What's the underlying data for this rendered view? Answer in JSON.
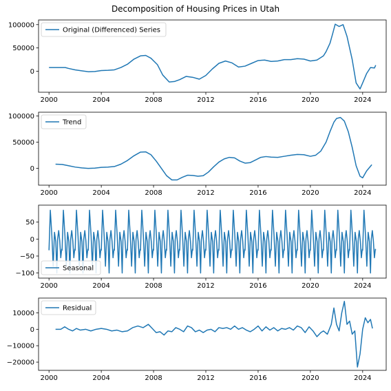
{
  "chart_data": {
    "type": "line",
    "title": "Decomposition of Housing Prices in Utah",
    "line_color": "#1f77b4",
    "grid": false,
    "legend_position": "upper left",
    "panels": [
      {
        "key": "original",
        "legend": "Original (Differenced) Series",
        "xlim": [
          1999.2,
          2025.8
        ],
        "ylim": [
          -45000,
          110000
        ],
        "xticks": [
          2000,
          2004,
          2008,
          2012,
          2016,
          2020,
          2024
        ],
        "yticks": [
          0,
          50000,
          100000
        ],
        "ytick_labels": [
          "0",
          "50000",
          "100000"
        ],
        "x": [
          2000.0,
          2001.25,
          2001.5,
          2002.0,
          2002.5,
          2003.0,
          2003.5,
          2004.0,
          2004.5,
          2005.0,
          2005.5,
          2006.0,
          2006.5,
          2007.0,
          2007.4,
          2007.8,
          2008.3,
          2008.7,
          2009.2,
          2009.6,
          2010.0,
          2010.5,
          2011.0,
          2011.5,
          2012.0,
          2012.5,
          2013.0,
          2013.5,
          2014.0,
          2014.5,
          2015.0,
          2015.5,
          2016.0,
          2016.5,
          2017.0,
          2017.5,
          2018.0,
          2018.5,
          2019.0,
          2019.5,
          2020.0,
          2020.5,
          2021.0,
          2021.2,
          2021.5,
          2021.7,
          2021.9,
          2022.2,
          2022.5,
          2022.8,
          2023.2,
          2023.5,
          2023.8,
          2024.0,
          2024.3,
          2024.6,
          2024.9,
          2025.0
        ],
        "y": [
          8000,
          8000,
          6000,
          3000,
          1000,
          -1000,
          -500,
          1500,
          2000,
          3000,
          8000,
          15000,
          26000,
          33000,
          34000,
          28000,
          14000,
          -8000,
          -23000,
          -22000,
          -18000,
          -11000,
          -13000,
          -17000,
          -9000,
          5000,
          17000,
          22000,
          18000,
          9000,
          11000,
          17000,
          23000,
          24000,
          21000,
          22000,
          25000,
          25000,
          27000,
          26000,
          22000,
          24000,
          33000,
          42000,
          60000,
          80000,
          101000,
          96000,
          100000,
          75000,
          25000,
          -25000,
          -38000,
          -25000,
          -5000,
          8000,
          7000,
          13000
        ]
      },
      {
        "key": "trend",
        "legend": "Trend",
        "xlim": [
          1999.2,
          2025.8
        ],
        "ylim": [
          -32000,
          107000
        ],
        "xticks": [
          2000,
          2004,
          2008,
          2012,
          2016,
          2020,
          2024
        ],
        "yticks": [
          0,
          50000,
          100000
        ],
        "ytick_labels": [
          "0",
          "50000",
          "100000"
        ],
        "x": [
          2000.5,
          2001.0,
          2001.5,
          2002.0,
          2002.5,
          2003.0,
          2003.5,
          2004.0,
          2004.5,
          2005.0,
          2005.5,
          2006.0,
          2006.5,
          2007.0,
          2007.4,
          2007.8,
          2008.2,
          2008.6,
          2009.0,
          2009.4,
          2009.8,
          2010.2,
          2010.6,
          2011.0,
          2011.4,
          2011.8,
          2012.2,
          2012.6,
          2013.0,
          2013.4,
          2013.8,
          2014.2,
          2014.6,
          2015.0,
          2015.4,
          2015.8,
          2016.2,
          2016.6,
          2017.0,
          2017.5,
          2018.0,
          2018.5,
          2019.0,
          2019.5,
          2020.0,
          2020.4,
          2020.8,
          2021.2,
          2021.5,
          2021.8,
          2022.0,
          2022.3,
          2022.6,
          2022.9,
          2023.2,
          2023.5,
          2023.8,
          2024.0,
          2024.3,
          2024.7
        ],
        "y": [
          8000,
          7500,
          5000,
          2500,
          1000,
          0,
          500,
          2000,
          2500,
          3500,
          8000,
          15000,
          24000,
          31000,
          31500,
          26000,
          14000,
          0,
          -14000,
          -22000,
          -22000,
          -17000,
          -13000,
          -13500,
          -15000,
          -14000,
          -7000,
          3000,
          12000,
          18000,
          21000,
          20000,
          14000,
          10000,
          11000,
          16000,
          21000,
          22500,
          21500,
          21000,
          23000,
          25000,
          26500,
          26000,
          23000,
          25000,
          33000,
          50000,
          70000,
          88000,
          95000,
          97000,
          90000,
          70000,
          40000,
          5000,
          -15000,
          -18000,
          -5000,
          7000
        ]
      },
      {
        "key": "seasonal",
        "legend": "Seasonal",
        "xlim": [
          1999.2,
          2025.8
        ],
        "ylim": [
          -115,
          100
        ],
        "xticks": [
          2000,
          2004,
          2008,
          2012,
          2016,
          2020,
          2024
        ],
        "yticks": [
          -100,
          -50,
          0,
          50
        ],
        "ytick_labels": [
          "−100",
          "−50",
          "0",
          "50"
        ],
        "period_start": 2000.0,
        "period_end": 2025.0,
        "cycle_months": [
          0.0,
          0.1,
          0.22,
          0.32,
          0.42,
          0.52,
          0.6,
          0.66,
          0.74,
          0.82,
          0.9,
          0.97,
          1.0
        ],
        "cycle_values": [
          -33,
          85,
          10,
          -80,
          20,
          -8,
          -100,
          0,
          25,
          -5,
          -55,
          -30,
          -33
        ]
      },
      {
        "key": "residual",
        "legend": "Residual",
        "xlim": [
          1999.2,
          2025.8
        ],
        "ylim": [
          -25000,
          19000
        ],
        "xticks": [
          2000,
          2004,
          2008,
          2012,
          2016,
          2020,
          2024
        ],
        "yticks": [
          -20000,
          -10000,
          0,
          10000
        ],
        "ytick_labels": [
          "−20000",
          "−10000",
          "0",
          "10000"
        ],
        "x": [
          2000.5,
          2000.9,
          2001.2,
          2001.5,
          2001.8,
          2002.1,
          2002.4,
          2002.8,
          2003.2,
          2003.6,
          2004.0,
          2004.4,
          2004.8,
          2005.2,
          2005.6,
          2006.0,
          2006.4,
          2006.8,
          2007.2,
          2007.6,
          2007.9,
          2008.2,
          2008.5,
          2008.8,
          2009.1,
          2009.4,
          2009.7,
          2010.0,
          2010.3,
          2010.6,
          2010.9,
          2011.2,
          2011.5,
          2011.8,
          2012.1,
          2012.4,
          2012.7,
          2013.0,
          2013.3,
          2013.6,
          2013.9,
          2014.2,
          2014.5,
          2014.8,
          2015.1,
          2015.4,
          2015.7,
          2016.0,
          2016.3,
          2016.6,
          2016.9,
          2017.2,
          2017.5,
          2017.8,
          2018.1,
          2018.4,
          2018.7,
          2019.0,
          2019.3,
          2019.6,
          2019.9,
          2020.2,
          2020.5,
          2020.8,
          2021.0,
          2021.3,
          2021.6,
          2021.8,
          2022.0,
          2022.2,
          2022.4,
          2022.6,
          2022.8,
          2023.0,
          2023.2,
          2023.4,
          2023.6,
          2023.8,
          2024.0,
          2024.2,
          2024.4,
          2024.6,
          2024.75
        ],
        "y": [
          0,
          0,
          1500,
          0,
          -1000,
          500,
          -500,
          0,
          -1000,
          0,
          500,
          0,
          -1000,
          -500,
          -1500,
          -1000,
          1000,
          2000,
          1000,
          3000,
          500,
          -2000,
          -1500,
          -3500,
          -1000,
          -1500,
          1000,
          0,
          -1500,
          2000,
          1000,
          -1500,
          -500,
          -2000,
          -500,
          0,
          -1500,
          1000,
          500,
          1000,
          0,
          2000,
          0,
          1000,
          -500,
          -1500,
          0,
          2000,
          -1000,
          1500,
          -500,
          1000,
          -1000,
          500,
          0,
          1000,
          -500,
          2000,
          1000,
          -2000,
          1500,
          -1000,
          -4500,
          -2000,
          -1000,
          -3000,
          3000,
          13000,
          3000,
          -1000,
          10000,
          17000,
          3000,
          5000,
          -3000,
          -1000,
          -23000,
          -15000,
          0,
          7000,
          4000,
          6000,
          500
        ]
      }
    ]
  }
}
